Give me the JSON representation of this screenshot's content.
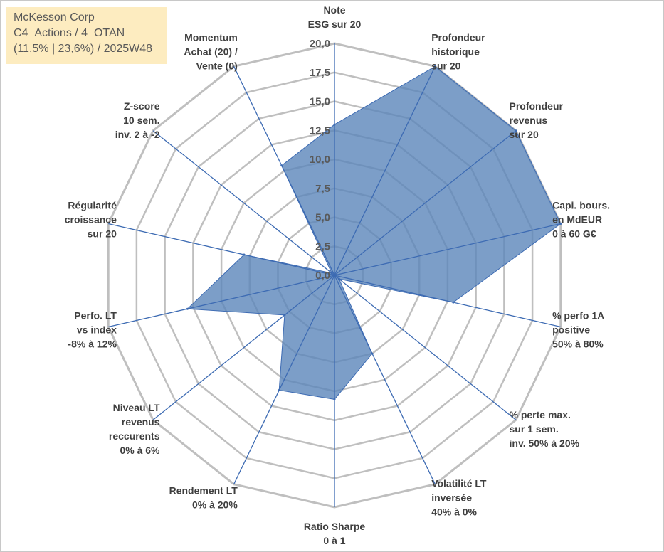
{
  "info_box": {
    "line1": "McKesson Corp",
    "line2": "C4_Actions / 4_OTAN",
    "line3": "(11,5% | 23,6%) / 2025W48"
  },
  "colors": {
    "fill": "#5b86ba",
    "spoke": "#3d6bb3",
    "grid": "#bfbfbf",
    "background": "#fdecc0"
  },
  "chart_data": {
    "type": "radar",
    "rmax": 20,
    "ticks": [
      "0,0",
      "2,5",
      "5,0",
      "7,5",
      "10,0",
      "12,5",
      "15,0",
      "17,5",
      "20,0"
    ],
    "axes": [
      {
        "label": [
          "Note",
          "ESG sur 20"
        ],
        "value": 13.0
      },
      {
        "label": [
          "Profondeur",
          "historique",
          "sur 20"
        ],
        "value": 20.0
      },
      {
        "label": [
          "Profondeur",
          "revenus",
          "sur 20"
        ],
        "value": 20.0
      },
      {
        "label": [
          "Capi. bours.",
          "en MdEUR",
          "0 à 60 G€"
        ],
        "value": 20.0
      },
      {
        "label": [
          "% perfo 1A",
          "positive",
          "50% à 80%"
        ],
        "value": 10.5
      },
      {
        "label": [
          "% perte max.",
          "sur 1 sem.",
          "inv. 50% à 20%"
        ],
        "value": 0.5
      },
      {
        "label": [
          "Volatilité LT",
          "inversée",
          "40% à 0%"
        ],
        "value": 7.5
      },
      {
        "label": [
          "Ratio Sharpe",
          "0 à 1"
        ],
        "value": 10.7
      },
      {
        "label": [
          "Rendement LT",
          "0% à 20%"
        ],
        "value": 11.0
      },
      {
        "label": [
          "Niveau LT",
          "revenus",
          "reccurents",
          "0% à 6%"
        ],
        "value": 5.5
      },
      {
        "label": [
          "Perfo. LT",
          "vs index",
          "-8% à 12%"
        ],
        "value": 13.0
      },
      {
        "label": [
          "Régularité",
          "croissance",
          "sur 20"
        ],
        "value": 8.0
      },
      {
        "label": [
          "Z-score",
          "10 sem.",
          "inv. 2 à -2"
        ],
        "value": 0.3
      },
      {
        "label": [
          "Momentum",
          "Achat (20) /",
          "Vente (0)"
        ],
        "value": 10.5
      }
    ]
  }
}
